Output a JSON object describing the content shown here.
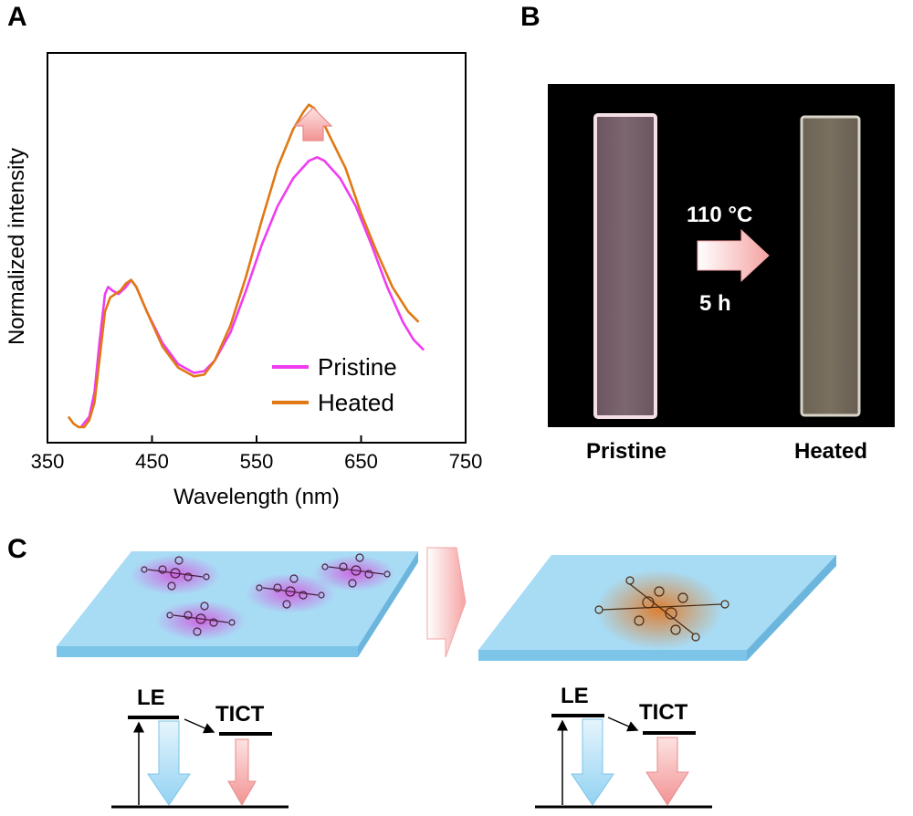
{
  "panels": {
    "a": "A",
    "b": "B",
    "c": "C"
  },
  "chart_data": {
    "type": "line",
    "xlabel": "Wavelength (nm)",
    "ylabel": "Normalized intensity",
    "xlim": [
      350,
      750
    ],
    "ylim": [
      0,
      1.0
    ],
    "xticks": [
      "350",
      "450",
      "550",
      "650",
      "750"
    ],
    "grid": false,
    "legend_position": "bottom-right",
    "series": [
      {
        "name": "Pristine",
        "color": "#f03cf0",
        "x": [
          382,
          390,
          395,
          400,
          405,
          408,
          412,
          418,
          425,
          430,
          435,
          445,
          460,
          475,
          490,
          500,
          510,
          525,
          540,
          555,
          570,
          585,
          600,
          608,
          615,
          630,
          645,
          660,
          675,
          690,
          700,
          710
        ],
        "y": [
          0.0,
          0.03,
          0.1,
          0.25,
          0.38,
          0.4,
          0.39,
          0.38,
          0.4,
          0.42,
          0.4,
          0.33,
          0.24,
          0.18,
          0.155,
          0.16,
          0.19,
          0.27,
          0.39,
          0.52,
          0.63,
          0.71,
          0.76,
          0.77,
          0.76,
          0.71,
          0.63,
          0.52,
          0.4,
          0.3,
          0.25,
          0.22
        ]
      },
      {
        "name": "Heated",
        "color": "#e07814",
        "x": [
          370,
          375,
          380,
          385,
          390,
          395,
          400,
          405,
          410,
          415,
          420,
          425,
          430,
          435,
          445,
          460,
          475,
          490,
          500,
          510,
          525,
          540,
          555,
          570,
          585,
          595,
          600,
          605,
          612,
          620,
          635,
          650,
          665,
          680,
          695,
          705
        ],
        "y": [
          0.03,
          0.01,
          0.0,
          0.0,
          0.02,
          0.07,
          0.2,
          0.33,
          0.37,
          0.38,
          0.39,
          0.41,
          0.42,
          0.4,
          0.33,
          0.23,
          0.17,
          0.145,
          0.15,
          0.19,
          0.29,
          0.43,
          0.59,
          0.74,
          0.85,
          0.9,
          0.92,
          0.91,
          0.88,
          0.83,
          0.74,
          0.61,
          0.5,
          0.4,
          0.33,
          0.3
        ]
      }
    ],
    "annotations": [
      "pink up-arrow between peaks"
    ]
  },
  "photo": {
    "condition_temp": "110 °C",
    "condition_time": "5 h",
    "left_label": "Pristine",
    "right_label": "Heated"
  },
  "scheme": {
    "le": "LE",
    "tict": "TICT"
  },
  "colors": {
    "film": "#a8dcf5",
    "film_edge": "#7cc4e8",
    "arrow_pink": "#f8b4b4",
    "arrow_blue": "#bfe4f7",
    "magenta_glow": "#d25ae0",
    "orange_glow": "#e58a3c"
  }
}
